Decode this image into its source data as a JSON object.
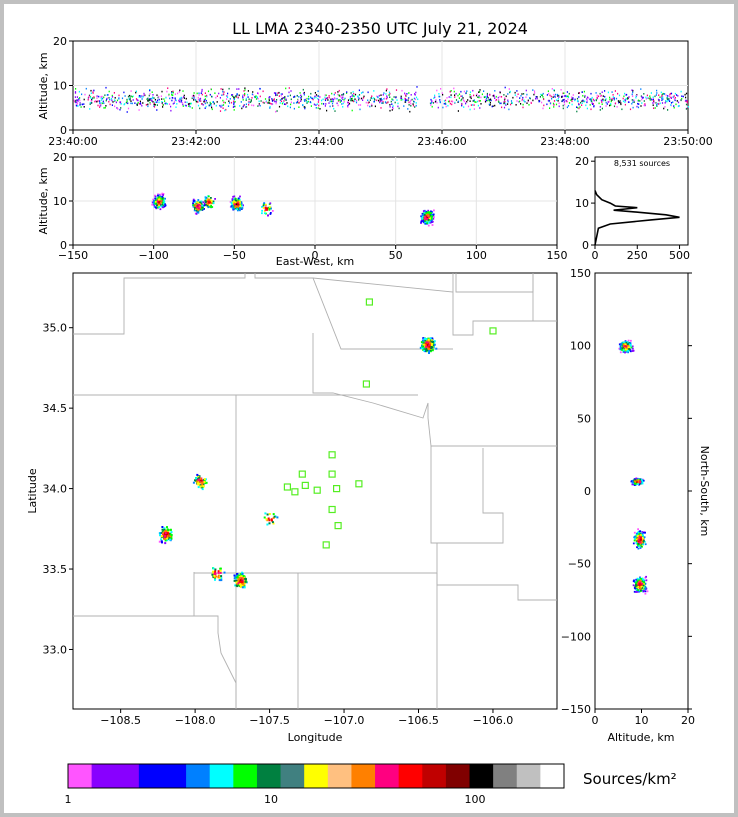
{
  "chart_data": {
    "type": "scatter",
    "title": "LL LMA 2340-2350 UTC July 21, 2024",
    "time_panel": {
      "ylabel": "Altitude, km",
      "ylim": [
        0,
        20
      ],
      "yticks": [
        "0",
        "10",
        "20"
      ],
      "xticks": [
        "23:40:00",
        "23:42:00",
        "23:44:00",
        "23:46:00",
        "23:48:00",
        "23:50:00"
      ]
    },
    "ew_panel": {
      "xlabel": "East-West, km",
      "ylabel": "Altitude, km",
      "xlim": [
        -150,
        150
      ],
      "ylim": [
        0,
        20
      ],
      "xticks": [
        "−150",
        "−100",
        "−50",
        "0",
        "50",
        "100",
        "150"
      ],
      "yticks": [
        "0",
        "10",
        "20"
      ],
      "clusters_km": [
        {
          "x": -97,
          "alt": 10,
          "count": 180
        },
        {
          "x": -73,
          "alt": 9,
          "count": 150
        },
        {
          "x": -66,
          "alt": 10,
          "count": 60
        },
        {
          "x": -49,
          "alt": 9.5,
          "count": 200
        },
        {
          "x": -31,
          "alt": 8.5,
          "count": 40
        },
        {
          "x": 69,
          "alt": 6.5,
          "count": 320
        }
      ]
    },
    "histogram_panel": {
      "annotation": "8,531 sources",
      "xlim": [
        0,
        550
      ],
      "ylim": [
        0,
        21
      ],
      "xticks": [
        "0",
        "250",
        "500"
      ],
      "yticks": [
        "0",
        "10",
        "20"
      ],
      "profile": [
        [
          0,
          0
        ],
        [
          20,
          4
        ],
        [
          90,
          5
        ],
        [
          330,
          6
        ],
        [
          500,
          6.6
        ],
        [
          420,
          7.2
        ],
        [
          260,
          7.8
        ],
        [
          110,
          8.3
        ],
        [
          180,
          8.6
        ],
        [
          250,
          8.9
        ],
        [
          120,
          9.3
        ],
        [
          90,
          10
        ],
        [
          40,
          10.8
        ],
        [
          10,
          12
        ],
        [
          0,
          13
        ]
      ]
    },
    "map_panel": {
      "xlabel": "Longitude",
      "ylabel": "Latitude",
      "xlim": [
        -108.82,
        -105.57
      ],
      "ylim": [
        32.63,
        35.34
      ],
      "xticks": [
        "−108.5",
        "−108.0",
        "−107.5",
        "−107.0",
        "−106.5",
        "−106.0"
      ],
      "yticks": [
        "33.0",
        "33.5",
        "34.0",
        "34.5",
        "35.0"
      ],
      "stations": [
        [
          -106.83,
          35.16
        ],
        [
          -106.0,
          34.98
        ],
        [
          -106.85,
          34.65
        ],
        [
          -107.08,
          34.21
        ],
        [
          -107.08,
          34.09
        ],
        [
          -107.28,
          34.09
        ],
        [
          -107.38,
          34.01
        ],
        [
          -107.26,
          34.02
        ],
        [
          -107.33,
          33.98
        ],
        [
          -107.18,
          33.99
        ],
        [
          -107.05,
          34.0
        ],
        [
          -106.9,
          34.03
        ],
        [
          -107.08,
          33.87
        ],
        [
          -107.04,
          33.77
        ],
        [
          -107.12,
          33.65
        ]
      ],
      "clusters": [
        {
          "lon": -106.44,
          "lat": 34.9,
          "count": 260
        },
        {
          "lon": -107.97,
          "lat": 34.05,
          "count": 60
        },
        {
          "lon": -108.2,
          "lat": 33.72,
          "count": 110
        },
        {
          "lon": -107.5,
          "lat": 33.82,
          "count": 20
        },
        {
          "lon": -107.86,
          "lat": 33.48,
          "count": 40
        },
        {
          "lon": -107.7,
          "lat": 33.43,
          "count": 140
        }
      ]
    },
    "ns_panel": {
      "xlabel": "Altitude, km",
      "ylabel": "North-South, km",
      "xlim": [
        0,
        20
      ],
      "ylim": [
        -150,
        150
      ],
      "xticks": [
        "0",
        "10",
        "20"
      ],
      "yticks": [
        "150",
        "100",
        "50",
        "0",
        "−50",
        "−100",
        "−150"
      ]
    },
    "colorbar": {
      "label": "Sources/km²",
      "ticks": [
        "1",
        "10",
        "100"
      ],
      "colors": [
        "#ff55ff",
        "#8800ff",
        "#8800ff",
        "#0000ff",
        "#0000ff",
        "#0080ff",
        "#00ffff",
        "#00ff00",
        "#008040",
        "#408080",
        "#ffff00",
        "#ffc080",
        "#ff8000",
        "#ff0080",
        "#ff0000",
        "#c00000",
        "#800000",
        "#000000",
        "#808080",
        "#c0c0c0",
        "#ffffff"
      ]
    }
  }
}
